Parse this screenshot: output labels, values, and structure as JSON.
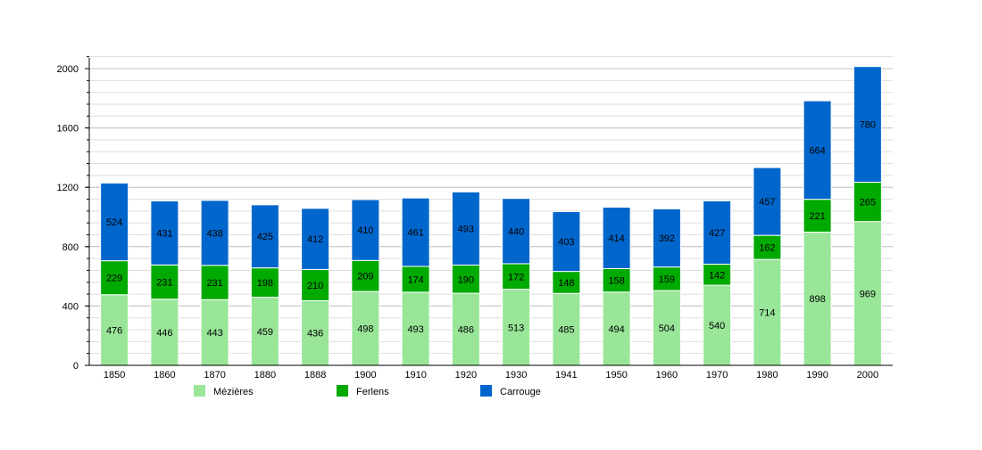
{
  "chart_data": {
    "type": "stacked-bar",
    "categories": [
      "1850",
      "1860",
      "1870",
      "1880",
      "1888",
      "1900",
      "1910",
      "1920",
      "1930",
      "1941",
      "1950",
      "1960",
      "1970",
      "1980",
      "1990",
      "2000"
    ],
    "series": [
      {
        "name": "Mézières",
        "color": "#99e699",
        "values": [
          476,
          446,
          443,
          459,
          436,
          498,
          493,
          486,
          513,
          485,
          494,
          504,
          540,
          714,
          898,
          969
        ]
      },
      {
        "name": "Ferlens",
        "color": "#00aa00",
        "values": [
          229,
          231,
          231,
          198,
          210,
          209,
          174,
          190,
          172,
          148,
          158,
          159,
          142,
          162,
          221,
          265
        ]
      },
      {
        "name": "Carrouge",
        "color": "#0066cc",
        "values": [
          524,
          431,
          438,
          425,
          412,
          410,
          461,
          493,
          440,
          403,
          414,
          392,
          427,
          457,
          664,
          780
        ]
      }
    ],
    "ylim": [
      0,
      2000
    ],
    "yticks": [
      "0",
      "400",
      "800",
      "1200",
      "1600",
      "2000"
    ],
    "grid": true,
    "legend": "bottom"
  }
}
